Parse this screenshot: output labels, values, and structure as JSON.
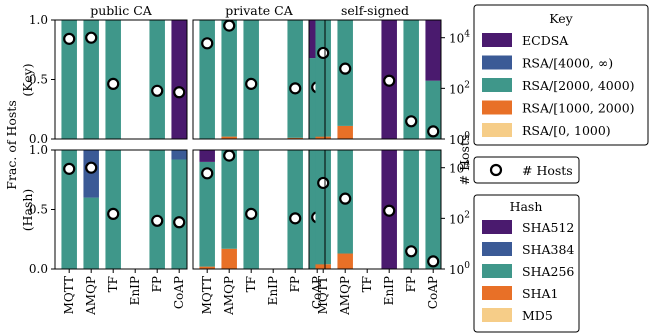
{
  "colors": {
    "ECDSA": "#4a1a6e",
    "RSA/[4000,∞)": "#3b5a96",
    "RSA/[2000,4000)": "#3f978a",
    "RSA/[1000,2000)": "#e87027",
    "RSA/[0,1000)": "#f6cd88",
    "SHA512": "#4a1a6e",
    "SHA384": "#3b5a96",
    "SHA256": "#3f978a",
    "SHA1": "#e87027",
    "MD5": "#f6cd88"
  },
  "chart_data": {
    "type": "bar",
    "subtype": "stacked-bar grid with log-scale host counts overlay",
    "columns": [
      "public CA",
      "private CA",
      "self-signed"
    ],
    "rows": [
      "Key",
      "Hash"
    ],
    "categories": [
      "MQTT",
      "AMQP",
      "TF",
      "EnIP",
      "FP",
      "CoAP"
    ],
    "ylabel": "Frac. of Hosts",
    "ylabel_rows": [
      "(Key)",
      "(Hash)"
    ],
    "y2label": "# Hosts",
    "ylim": [
      0,
      1
    ],
    "yticks": [
      "0.0",
      "0.5",
      "1.0"
    ],
    "y2scale": "log",
    "y2lim": [
      1,
      50000
    ],
    "y2ticks": [
      {
        "value": 1,
        "label": "10",
        "exp": "0"
      },
      {
        "value": 100,
        "label": "10",
        "exp": "2"
      },
      {
        "value": 10000,
        "label": "10",
        "exp": "4"
      }
    ],
    "key_order": [
      "RSA/[0,1000)",
      "RSA/[1000,2000)",
      "RSA/[2000,4000)",
      "RSA/[4000,∞)",
      "ECDSA"
    ],
    "hash_order": [
      "MD5",
      "SHA1",
      "SHA256",
      "SHA384",
      "SHA512"
    ],
    "panels": [
      {
        "row": 0,
        "col": 0,
        "bars": [
          {
            "RSA/[2000,4000)": 1.0
          },
          {
            "RSA/[2000,4000)": 1.0
          },
          {
            "RSA/[2000,4000)": 1.0
          },
          null,
          {
            "RSA/[2000,4000)": 1.0
          },
          {
            "RSA/[2000,4000)": 0.0,
            "ECDSA": 1.0
          }
        ],
        "hosts": [
          9000,
          10000,
          150,
          null,
          80,
          70
        ]
      },
      {
        "row": 0,
        "col": 1,
        "bars": [
          {
            "RSA/[2000,4000)": 1.0
          },
          {
            "RSA/[1000,2000)": 0.02,
            "RSA/[2000,4000)": 0.98
          },
          {
            "RSA/[2000,4000)": 1.0
          },
          null,
          {
            "RSA/[1000,2000)": 0.01,
            "RSA/[2000,4000)": 0.99
          },
          {
            "RSA/[2000,4000)": 0.68,
            "ECDSA": 0.32
          }
        ],
        "hosts": [
          6000,
          30000,
          150,
          null,
          100,
          110
        ]
      },
      {
        "row": 0,
        "col": 2,
        "bars": [
          {
            "RSA/[1000,2000)": 0.02,
            "RSA/[2000,4000)": 0.98
          },
          {
            "RSA/[1000,2000)": 0.11,
            "RSA/[2000,4000)": 0.89
          },
          null,
          {
            "ECDSA": 1.0
          },
          {
            "RSA/[2000,4000)": 1.0
          },
          {
            "RSA/[2000,4000)": 0.49,
            "ECDSA": 0.51
          }
        ],
        "hosts": [
          2500,
          600,
          null,
          200,
          5,
          2
        ]
      },
      {
        "row": 1,
        "col": 0,
        "bars": [
          {
            "SHA256": 1.0
          },
          {
            "SHA256": 0.6,
            "SHA384": 0.4
          },
          {
            "SHA256": 1.0
          },
          null,
          {
            "SHA256": 1.0
          },
          {
            "SHA256": 0.92,
            "SHA384": 0.08
          }
        ],
        "hosts": [
          9000,
          10000,
          150,
          null,
          80,
          70
        ]
      },
      {
        "row": 1,
        "col": 1,
        "bars": [
          {
            "SHA1": 0.02,
            "SHA256": 0.88,
            "SHA512": 0.1
          },
          {
            "SHA1": 0.17,
            "SHA256": 0.83
          },
          {
            "SHA256": 1.0
          },
          null,
          {
            "SHA256": 1.0
          },
          {
            "SHA256": 1.0
          }
        ],
        "hosts": [
          6000,
          30000,
          150,
          null,
          100,
          110
        ]
      },
      {
        "row": 1,
        "col": 2,
        "bars": [
          {
            "SHA1": 0.04,
            "SHA256": 0.96
          },
          {
            "SHA1": 0.13,
            "SHA256": 0.87
          },
          null,
          {
            "SHA512": 1.0
          },
          {
            "SHA256": 1.0
          },
          {
            "SHA256": 1.0
          }
        ],
        "hosts": [
          2500,
          600,
          null,
          200,
          5,
          2
        ]
      }
    ],
    "legend": {
      "key": {
        "title": "Key",
        "entries": [
          "ECDSA",
          "RSA/[4000, ∞)",
          "RSA/[2000, 4000)",
          "RSA/[1000, 2000)",
          "RSA/[0, 1000)"
        ],
        "series": [
          "ECDSA",
          "RSA/[4000,∞)",
          "RSA/[2000,4000)",
          "RSA/[1000,2000)",
          "RSA/[0,1000)"
        ]
      },
      "hosts": {
        "label": "# Hosts"
      },
      "hash": {
        "title": "Hash",
        "entries": [
          "SHA512",
          "SHA384",
          "SHA256",
          "SHA1",
          "MD5"
        ]
      }
    }
  }
}
